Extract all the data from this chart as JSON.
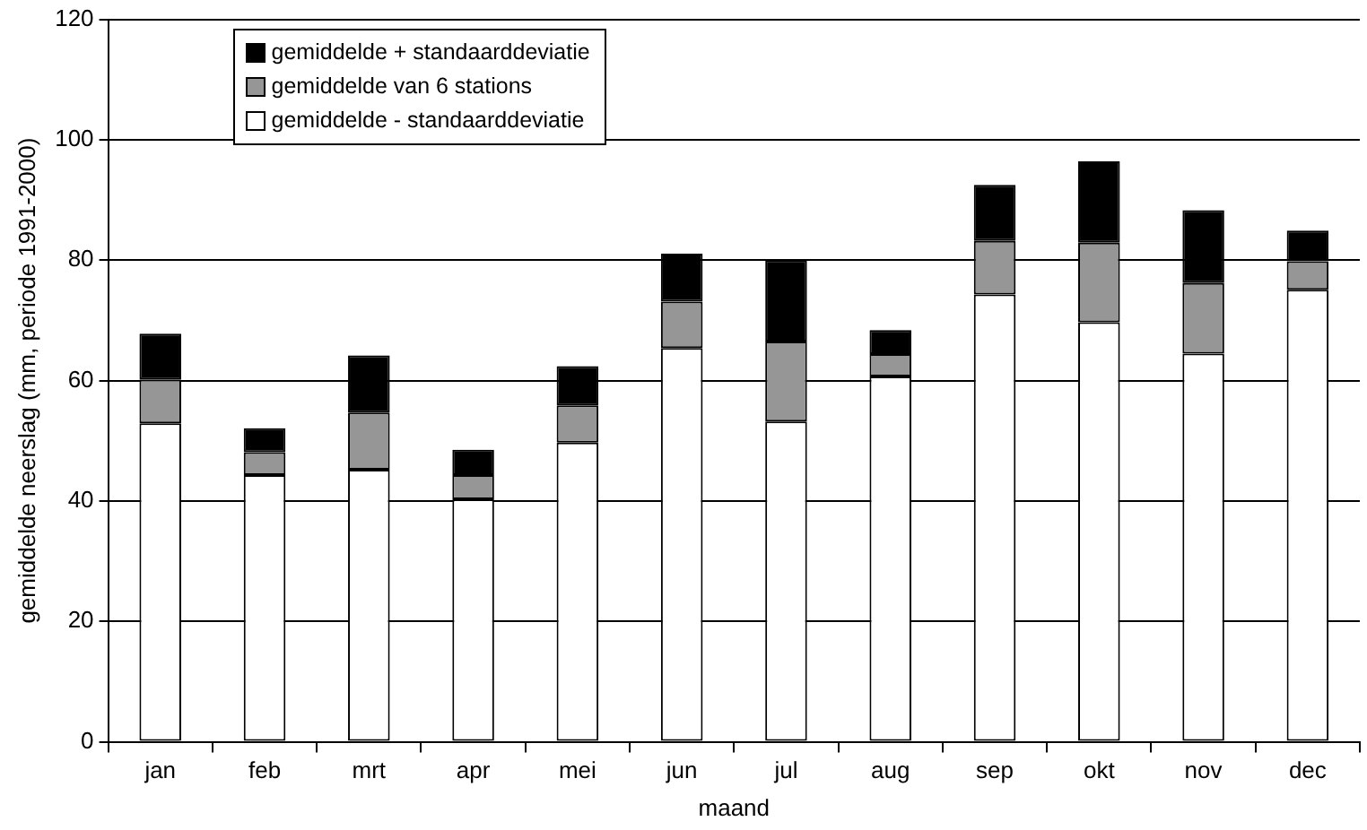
{
  "chart_data": {
    "type": "bar",
    "stacked": true,
    "xlabel": "maand",
    "ylabel": "gemiddelde neerslag (mm, periode 1991-2000)",
    "categories": [
      "jan",
      "feb",
      "mrt",
      "apr",
      "mei",
      "jun",
      "jul",
      "aug",
      "sep",
      "okt",
      "nov",
      "dec"
    ],
    "series": [
      {
        "name": "gemiddelde - standaarddeviatie",
        "color": "#ffffff",
        "values": [
          52.9,
          44.3,
          45.2,
          40.3,
          49.7,
          65.4,
          53.2,
          60.7,
          74.3,
          69.7,
          64.5,
          75.1
        ]
      },
      {
        "name": "gemiddelde van 6 stations",
        "color": "#969696",
        "values": [
          7.3,
          3.8,
          9.5,
          4.0,
          6.2,
          7.7,
          13.3,
          3.7,
          8.9,
          13.2,
          11.7,
          4.7
        ]
      },
      {
        "name": "gemiddelde + standaarddeviatie",
        "color": "#000000",
        "values": [
          7.6,
          4.0,
          9.5,
          4.2,
          6.5,
          8.0,
          13.5,
          4.0,
          9.3,
          13.5,
          12.1,
          5.1
        ]
      }
    ],
    "ylim": [
      0,
      120
    ],
    "yticks": [
      0,
      20,
      40,
      60,
      80,
      100,
      120
    ],
    "grid": "y",
    "legend": "top left"
  }
}
